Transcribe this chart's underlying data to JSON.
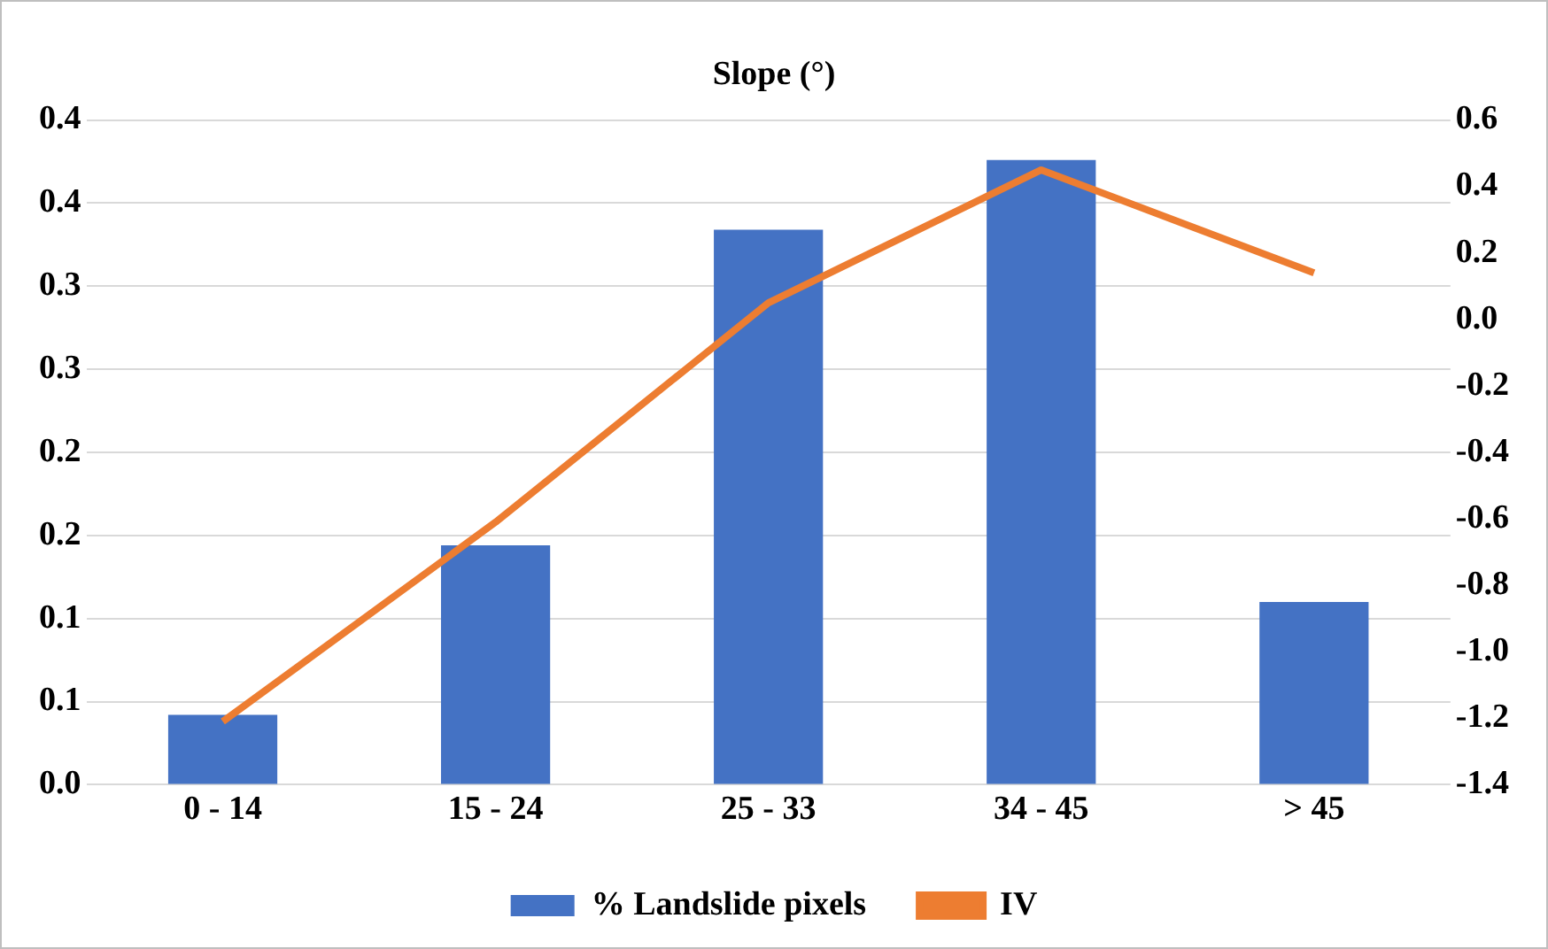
{
  "chart_data": {
    "type": "bar",
    "title": "Slope (°)",
    "categories": [
      "0 - 14",
      "15 - 24",
      "25 - 33",
      "34 - 45",
      "> 45"
    ],
    "series": [
      {
        "name": "% Landslide pixels",
        "color": "#4472c4",
        "values": [
          0.042,
          0.144,
          0.334,
          0.376,
          0.11
        ]
      },
      {
        "name": "IV",
        "type": "line",
        "axis": "y2",
        "color": "#ed7d31",
        "marker": "none",
        "values": [
          -1.21,
          -0.61,
          0.05,
          0.45,
          0.14
        ]
      }
    ],
    "ylim": [
      0,
      0.4
    ],
    "yticks": [
      {
        "value": 0,
        "label": "0.0"
      },
      {
        "value": 0.05,
        "label": "0.1"
      },
      {
        "value": 0.1,
        "label": "0.1"
      },
      {
        "value": 0.15,
        "label": "0.2"
      },
      {
        "value": 0.2,
        "label": "0.2"
      },
      {
        "value": 0.25,
        "label": "0.3"
      },
      {
        "value": 0.3,
        "label": "0.3"
      },
      {
        "value": 0.35,
        "label": "0.4"
      },
      {
        "value": 0.4,
        "label": "0.4"
      }
    ],
    "y2lim": [
      -1.4,
      0.6
    ],
    "y2ticks": [
      -1.4,
      -1.2,
      {
        "value": -1,
        "label": "-1.0"
      },
      -0.8,
      -0.6,
      -0.4,
      -0.2,
      {
        "value": 0,
        "label": "0.0"
      },
      0.2,
      0.4,
      0.6
    ],
    "grid": "y",
    "legend": "bottom"
  }
}
